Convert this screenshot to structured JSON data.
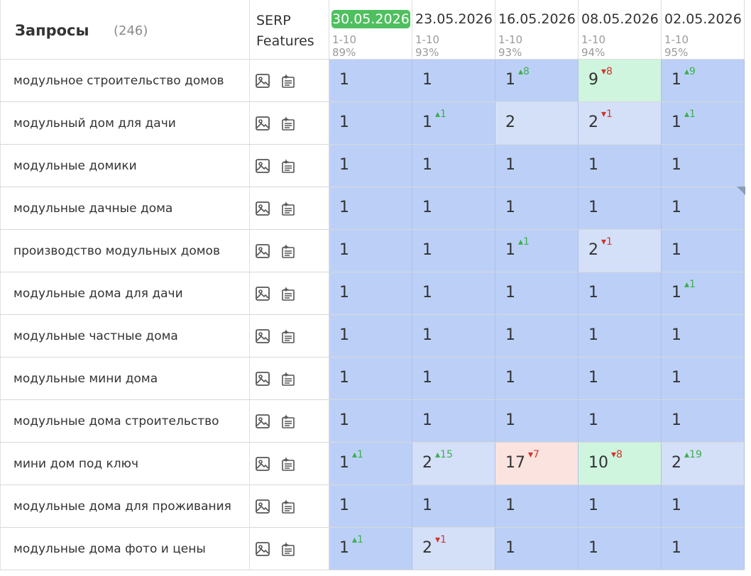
{
  "header": {
    "queries_title": "Запросы",
    "queries_count": "(246)",
    "serp_line1": "SERP",
    "serp_line2": "Features",
    "dates": [
      {
        "date": "30.05.2026",
        "range": "1-10",
        "pct": "89%",
        "active": true
      },
      {
        "date": "23.05.2026",
        "range": "1-10",
        "pct": "93%",
        "active": false
      },
      {
        "date": "16.05.2026",
        "range": "1-10",
        "pct": "93%",
        "active": false
      },
      {
        "date": "08.05.2026",
        "range": "1-10",
        "pct": "94%",
        "active": false
      },
      {
        "date": "02.05.2026",
        "range": "1-10",
        "pct": "95%",
        "active": false
      }
    ]
  },
  "serp_icons": [
    "image-icon",
    "featured-snippet-icon"
  ],
  "colors": {
    "active_date": "#4fbf5f",
    "top_position": "#bcd0f7",
    "mid_position": "#d4e0f8",
    "drop": "#fbe3df",
    "rise": "#cff5de",
    "delta_up": "#3fae4f",
    "delta_down": "#d3342c"
  },
  "rows": [
    {
      "query": "модульное строительство домов",
      "cells": [
        {
          "pos": "1",
          "delta": "",
          "dir": "",
          "bg": "best"
        },
        {
          "pos": "1",
          "delta": "",
          "dir": "",
          "bg": "best"
        },
        {
          "pos": "1",
          "delta": "8",
          "dir": "up",
          "bg": "best"
        },
        {
          "pos": "9",
          "delta": "8",
          "dir": "down",
          "bg": "good"
        },
        {
          "pos": "1",
          "delta": "9",
          "dir": "up",
          "bg": "best"
        }
      ]
    },
    {
      "query": "модульный дом для дачи",
      "cells": [
        {
          "pos": "1",
          "delta": "",
          "dir": "",
          "bg": "best"
        },
        {
          "pos": "1",
          "delta": "1",
          "dir": "up",
          "bg": "best"
        },
        {
          "pos": "2",
          "delta": "",
          "dir": "",
          "bg": "mid"
        },
        {
          "pos": "2",
          "delta": "1",
          "dir": "down",
          "bg": "mid"
        },
        {
          "pos": "1",
          "delta": "1",
          "dir": "up",
          "bg": "best"
        }
      ]
    },
    {
      "query": "модульные домики",
      "cells": [
        {
          "pos": "1",
          "delta": "",
          "dir": "",
          "bg": "best"
        },
        {
          "pos": "1",
          "delta": "",
          "dir": "",
          "bg": "best"
        },
        {
          "pos": "1",
          "delta": "",
          "dir": "",
          "bg": "best"
        },
        {
          "pos": "1",
          "delta": "",
          "dir": "",
          "bg": "best"
        },
        {
          "pos": "1",
          "delta": "",
          "dir": "",
          "bg": "best"
        }
      ]
    },
    {
      "query": "модульные дачные дома",
      "cells": [
        {
          "pos": "1",
          "delta": "",
          "dir": "",
          "bg": "best"
        },
        {
          "pos": "1",
          "delta": "",
          "dir": "",
          "bg": "best"
        },
        {
          "pos": "1",
          "delta": "",
          "dir": "",
          "bg": "best"
        },
        {
          "pos": "1",
          "delta": "",
          "dir": "",
          "bg": "best"
        },
        {
          "pos": "1",
          "delta": "",
          "dir": "",
          "bg": "best"
        }
      ]
    },
    {
      "query": "производство модульных домов",
      "cells": [
        {
          "pos": "1",
          "delta": "",
          "dir": "",
          "bg": "best"
        },
        {
          "pos": "1",
          "delta": "",
          "dir": "",
          "bg": "best"
        },
        {
          "pos": "1",
          "delta": "1",
          "dir": "up",
          "bg": "best"
        },
        {
          "pos": "2",
          "delta": "1",
          "dir": "down",
          "bg": "mid"
        },
        {
          "pos": "1",
          "delta": "",
          "dir": "",
          "bg": "best"
        }
      ]
    },
    {
      "query": "модульные дома для дачи",
      "cells": [
        {
          "pos": "1",
          "delta": "",
          "dir": "",
          "bg": "best"
        },
        {
          "pos": "1",
          "delta": "",
          "dir": "",
          "bg": "best"
        },
        {
          "pos": "1",
          "delta": "",
          "dir": "",
          "bg": "best"
        },
        {
          "pos": "1",
          "delta": "",
          "dir": "",
          "bg": "best"
        },
        {
          "pos": "1",
          "delta": "1",
          "dir": "up",
          "bg": "best"
        }
      ]
    },
    {
      "query": "модульные частные дома",
      "cells": [
        {
          "pos": "1",
          "delta": "",
          "dir": "",
          "bg": "best"
        },
        {
          "pos": "1",
          "delta": "",
          "dir": "",
          "bg": "best"
        },
        {
          "pos": "1",
          "delta": "",
          "dir": "",
          "bg": "best"
        },
        {
          "pos": "1",
          "delta": "",
          "dir": "",
          "bg": "best"
        },
        {
          "pos": "1",
          "delta": "",
          "dir": "",
          "bg": "best"
        }
      ]
    },
    {
      "query": "модульные мини дома",
      "cells": [
        {
          "pos": "1",
          "delta": "",
          "dir": "",
          "bg": "best"
        },
        {
          "pos": "1",
          "delta": "",
          "dir": "",
          "bg": "best"
        },
        {
          "pos": "1",
          "delta": "",
          "dir": "",
          "bg": "best"
        },
        {
          "pos": "1",
          "delta": "",
          "dir": "",
          "bg": "best"
        },
        {
          "pos": "1",
          "delta": "",
          "dir": "",
          "bg": "best"
        }
      ]
    },
    {
      "query": "модульные дома строительство",
      "cells": [
        {
          "pos": "1",
          "delta": "",
          "dir": "",
          "bg": "best"
        },
        {
          "pos": "1",
          "delta": "",
          "dir": "",
          "bg": "best"
        },
        {
          "pos": "1",
          "delta": "",
          "dir": "",
          "bg": "best"
        },
        {
          "pos": "1",
          "delta": "",
          "dir": "",
          "bg": "best"
        },
        {
          "pos": "1",
          "delta": "",
          "dir": "",
          "bg": "best"
        }
      ]
    },
    {
      "query": "мини дом под ключ",
      "cells": [
        {
          "pos": "1",
          "delta": "1",
          "dir": "up",
          "bg": "best"
        },
        {
          "pos": "2",
          "delta": "15",
          "dir": "up",
          "bg": "mid"
        },
        {
          "pos": "17",
          "delta": "7",
          "dir": "down",
          "bg": "bad"
        },
        {
          "pos": "10",
          "delta": "8",
          "dir": "down",
          "bg": "good"
        },
        {
          "pos": "2",
          "delta": "19",
          "dir": "up",
          "bg": "mid"
        }
      ]
    },
    {
      "query": "модульные дома для проживания",
      "cells": [
        {
          "pos": "1",
          "delta": "",
          "dir": "",
          "bg": "best"
        },
        {
          "pos": "1",
          "delta": "",
          "dir": "",
          "bg": "best"
        },
        {
          "pos": "1",
          "delta": "",
          "dir": "",
          "bg": "best"
        },
        {
          "pos": "1",
          "delta": "",
          "dir": "",
          "bg": "best"
        },
        {
          "pos": "1",
          "delta": "",
          "dir": "",
          "bg": "best"
        }
      ]
    },
    {
      "query": "модульные дома фото и цены",
      "cells": [
        {
          "pos": "1",
          "delta": "1",
          "dir": "up",
          "bg": "best"
        },
        {
          "pos": "2",
          "delta": "1",
          "dir": "down",
          "bg": "mid"
        },
        {
          "pos": "1",
          "delta": "",
          "dir": "",
          "bg": "best"
        },
        {
          "pos": "1",
          "delta": "",
          "dir": "",
          "bg": "best"
        },
        {
          "pos": "1",
          "delta": "",
          "dir": "",
          "bg": "best"
        }
      ]
    }
  ]
}
